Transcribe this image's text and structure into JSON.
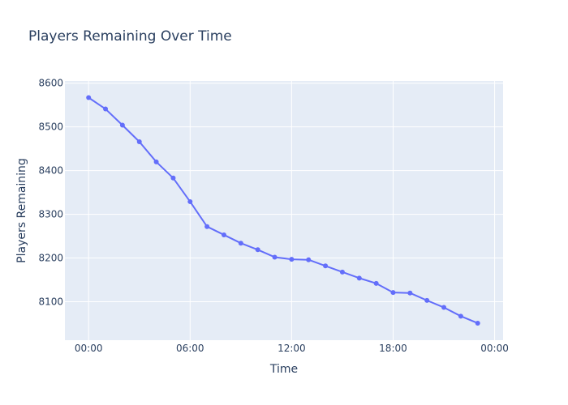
{
  "chart_data": {
    "type": "line",
    "title": "Players Remaining Over Time",
    "xlabel": "Time",
    "ylabel": "Players Remaining",
    "x_tick_labels": [
      "00:00",
      "06:00",
      "12:00",
      "18:00",
      "00:00"
    ],
    "x_tick_hours": [
      0,
      6,
      12,
      18,
      24
    ],
    "xlim_hours": [
      -1.4,
      24.5
    ],
    "y_ticks": [
      8100,
      8200,
      8300,
      8400,
      8500,
      8600
    ],
    "ylim": [
      8012,
      8605
    ],
    "grid": true,
    "legend": "none",
    "series": [
      {
        "x_hours": [
          0,
          1,
          2,
          3,
          4,
          5,
          6,
          7,
          8,
          9,
          10,
          11,
          12,
          13,
          14,
          15,
          16,
          17,
          18,
          19,
          20,
          21,
          22,
          23
        ],
        "values": [
          8567,
          8541,
          8504,
          8466,
          8420,
          8383,
          8329,
          8272,
          8253,
          8234,
          8219,
          8202,
          8197,
          8196,
          8182,
          8168,
          8154,
          8142,
          8121,
          8120,
          8103,
          8087,
          8067,
          8051
        ]
      }
    ]
  },
  "colors": {
    "line": "#636efa",
    "plot_bg": "#e5ecf6",
    "grid": "#ffffff",
    "text": "#2a3f5f"
  }
}
